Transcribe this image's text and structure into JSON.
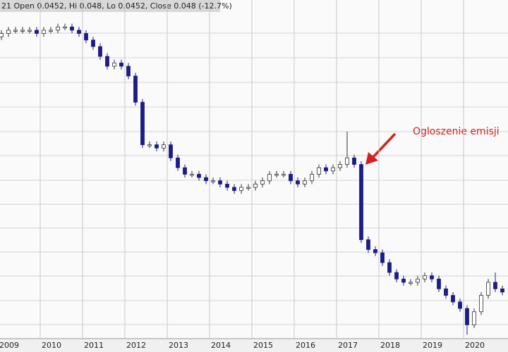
{
  "chart_data": {
    "type": "candlestick",
    "title": "21 Open 0.0452, Hi 0.048, Lo 0.0452, Close 0.048 (-12.7%)",
    "annotation": "Ogloszenie emisji",
    "categories": [
      "2009",
      null,
      null,
      null,
      null,
      null,
      "2010",
      null,
      null,
      null,
      null,
      null,
      "2011",
      null,
      null,
      null,
      null,
      null,
      "2012",
      null,
      null,
      null,
      null,
      null,
      "2013",
      null,
      null,
      null,
      null,
      null,
      "2014",
      null,
      null,
      null,
      null,
      null,
      "2015",
      null,
      null,
      null,
      null,
      null,
      "2016",
      null,
      null,
      null,
      null,
      null,
      "2017",
      null,
      null,
      null,
      null,
      null,
      "2018",
      null,
      null,
      null,
      null,
      null,
      "2019",
      null,
      null,
      null,
      null,
      null,
      "2020",
      null,
      null,
      null,
      null,
      null
    ],
    "open": [
      0.92,
      0.93,
      0.94,
      0.94,
      0.94,
      0.94,
      0.93,
      0.94,
      0.94,
      0.95,
      0.95,
      0.94,
      0.93,
      0.91,
      0.89,
      0.86,
      0.83,
      0.84,
      0.83,
      0.8,
      0.72,
      0.59,
      0.59,
      0.58,
      0.59,
      0.55,
      0.52,
      0.5,
      0.5,
      0.49,
      0.48,
      0.48,
      0.47,
      0.46,
      0.45,
      0.46,
      0.46,
      0.47,
      0.48,
      0.5,
      0.5,
      0.5,
      0.48,
      0.47,
      0.48,
      0.5,
      0.52,
      0.51,
      0.52,
      0.53,
      0.55,
      0.53,
      0.3,
      0.27,
      0.26,
      0.23,
      0.2,
      0.18,
      0.17,
      0.17,
      0.18,
      0.19,
      0.18,
      0.15,
      0.13,
      0.11,
      0.09,
      0.04,
      0.08,
      0.13,
      0.17,
      0.15
    ],
    "high": [
      0.94,
      0.95,
      0.95,
      0.95,
      0.95,
      0.95,
      0.95,
      0.95,
      0.96,
      0.96,
      0.96,
      0.95,
      0.94,
      0.92,
      0.9,
      0.87,
      0.85,
      0.85,
      0.84,
      0.81,
      0.73,
      0.6,
      0.6,
      0.6,
      0.6,
      0.56,
      0.53,
      0.51,
      0.51,
      0.5,
      0.49,
      0.49,
      0.48,
      0.47,
      0.47,
      0.47,
      0.48,
      0.49,
      0.51,
      0.51,
      0.51,
      0.51,
      0.49,
      0.49,
      0.51,
      0.53,
      0.53,
      0.53,
      0.54,
      0.63,
      0.56,
      0.54,
      0.31,
      0.28,
      0.27,
      0.24,
      0.21,
      0.19,
      0.18,
      0.19,
      0.2,
      0.2,
      0.19,
      0.16,
      0.14,
      0.12,
      0.1,
      0.09,
      0.14,
      0.18,
      0.2,
      0.16
    ],
    "low": [
      0.91,
      0.92,
      0.93,
      0.93,
      0.93,
      0.92,
      0.92,
      0.93,
      0.93,
      0.94,
      0.93,
      0.92,
      0.9,
      0.88,
      0.85,
      0.82,
      0.82,
      0.82,
      0.79,
      0.71,
      0.58,
      0.58,
      0.57,
      0.57,
      0.54,
      0.51,
      0.49,
      0.49,
      0.48,
      0.47,
      0.47,
      0.46,
      0.45,
      0.44,
      0.44,
      0.45,
      0.45,
      0.46,
      0.47,
      0.49,
      0.49,
      0.47,
      0.46,
      0.46,
      0.47,
      0.49,
      0.5,
      0.5,
      0.51,
      0.52,
      0.52,
      0.29,
      0.26,
      0.25,
      0.22,
      0.19,
      0.17,
      0.16,
      0.16,
      0.16,
      0.17,
      0.17,
      0.14,
      0.12,
      0.1,
      0.08,
      0.01,
      0.03,
      0.07,
      0.12,
      0.14,
      0.13
    ],
    "close": [
      0.93,
      0.94,
      0.94,
      0.94,
      0.94,
      0.93,
      0.94,
      0.94,
      0.95,
      0.95,
      0.94,
      0.93,
      0.91,
      0.89,
      0.86,
      0.83,
      0.84,
      0.83,
      0.8,
      0.72,
      0.59,
      0.59,
      0.58,
      0.59,
      0.55,
      0.52,
      0.5,
      0.5,
      0.49,
      0.48,
      0.48,
      0.47,
      0.46,
      0.45,
      0.46,
      0.46,
      0.47,
      0.48,
      0.5,
      0.5,
      0.5,
      0.48,
      0.47,
      0.48,
      0.5,
      0.52,
      0.51,
      0.52,
      0.53,
      0.55,
      0.53,
      0.3,
      0.27,
      0.26,
      0.23,
      0.2,
      0.18,
      0.17,
      0.17,
      0.18,
      0.19,
      0.18,
      0.15,
      0.13,
      0.11,
      0.09,
      0.04,
      0.08,
      0.13,
      0.17,
      0.15,
      0.14
    ],
    "up_color": "#ffffff",
    "down_color": "#1c1c86",
    "annotation_color": "#d42020",
    "ylim": [
      0,
      1
    ]
  }
}
